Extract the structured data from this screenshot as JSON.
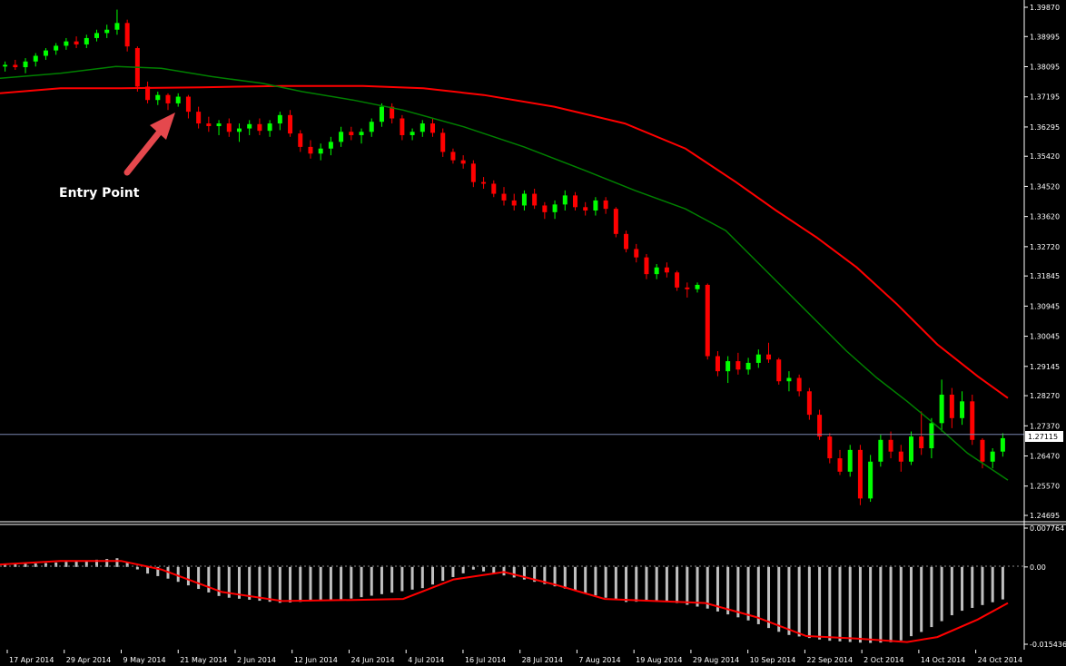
{
  "chart_data": [
    {
      "type": "candlestick",
      "annotation": "Entry Point",
      "y_ticks": [
        "1.39870",
        "1.38995",
        "1.38095",
        "1.37195",
        "1.36295",
        "1.35420",
        "1.34520",
        "1.33620",
        "1.32720",
        "1.31845",
        "1.30945",
        "1.30045",
        "1.29145",
        "1.28270",
        "1.27370",
        "1.26470",
        "1.25570",
        "1.24695"
      ],
      "current_price": "1.27115",
      "ylim": [
        1.24695,
        1.3987
      ],
      "colors": {
        "bull": "#00ff00",
        "bear": "#ff0000",
        "ma_fast": "#008000",
        "ma_slow": "#ff0000",
        "price_line": "#7a86b0"
      },
      "candles": [
        [
          1.381,
          1.3825,
          1.3795,
          1.3815
        ],
        [
          1.3815,
          1.383,
          1.38,
          1.3808
        ],
        [
          1.3808,
          1.3835,
          1.379,
          1.3825
        ],
        [
          1.3825,
          1.385,
          1.381,
          1.3842
        ],
        [
          1.3842,
          1.3865,
          1.383,
          1.3858
        ],
        [
          1.3858,
          1.388,
          1.3845,
          1.3872
        ],
        [
          1.3872,
          1.3895,
          1.386,
          1.3885
        ],
        [
          1.3885,
          1.39,
          1.3865,
          1.3876
        ],
        [
          1.3876,
          1.3905,
          1.3865,
          1.3895
        ],
        [
          1.3895,
          1.392,
          1.3885,
          1.391
        ],
        [
          1.391,
          1.3935,
          1.3895,
          1.392
        ],
        [
          1.392,
          1.398,
          1.3905,
          1.394
        ],
        [
          1.394,
          1.395,
          1.3855,
          1.387
        ],
        [
          1.3865,
          1.387,
          1.3735,
          1.375
        ],
        [
          1.375,
          1.3765,
          1.37,
          1.371
        ],
        [
          1.371,
          1.3735,
          1.3695,
          1.3725
        ],
        [
          1.3725,
          1.373,
          1.368,
          1.37
        ],
        [
          1.37,
          1.373,
          1.369,
          1.372
        ],
        [
          1.372,
          1.3725,
          1.3655,
          1.3675
        ],
        [
          1.3675,
          1.369,
          1.3625,
          1.364
        ],
        [
          1.364,
          1.366,
          1.3615,
          1.3632
        ],
        [
          1.3632,
          1.365,
          1.3605,
          1.364
        ],
        [
          1.364,
          1.3655,
          1.36,
          1.3615
        ],
        [
          1.3615,
          1.364,
          1.3585,
          1.3625
        ],
        [
          1.3625,
          1.365,
          1.3605,
          1.3638
        ],
        [
          1.3638,
          1.3655,
          1.3605,
          1.3618
        ],
        [
          1.3618,
          1.365,
          1.36,
          1.364
        ],
        [
          1.364,
          1.3675,
          1.362,
          1.3665
        ],
        [
          1.3665,
          1.368,
          1.36,
          1.361
        ],
        [
          1.361,
          1.362,
          1.3555,
          1.357
        ],
        [
          1.357,
          1.359,
          1.3535,
          1.355
        ],
        [
          1.355,
          1.358,
          1.353,
          1.3565
        ],
        [
          1.3565,
          1.36,
          1.3545,
          1.3585
        ],
        [
          1.3585,
          1.363,
          1.357,
          1.3615
        ],
        [
          1.3615,
          1.363,
          1.359,
          1.3605
        ],
        [
          1.3605,
          1.3625,
          1.358,
          1.3615
        ],
        [
          1.3615,
          1.3655,
          1.36,
          1.3645
        ],
        [
          1.3645,
          1.37,
          1.363,
          1.369
        ],
        [
          1.369,
          1.37,
          1.364,
          1.3655
        ],
        [
          1.3655,
          1.3665,
          1.359,
          1.3605
        ],
        [
          1.3605,
          1.3625,
          1.359,
          1.3615
        ],
        [
          1.3615,
          1.365,
          1.36,
          1.364
        ],
        [
          1.364,
          1.3655,
          1.36,
          1.3612
        ],
        [
          1.3612,
          1.3625,
          1.354,
          1.3555
        ],
        [
          1.3555,
          1.3565,
          1.352,
          1.353
        ],
        [
          1.353,
          1.3545,
          1.3505,
          1.352
        ],
        [
          1.352,
          1.353,
          1.345,
          1.3465
        ],
        [
          1.3465,
          1.348,
          1.3445,
          1.346
        ],
        [
          1.346,
          1.347,
          1.342,
          1.343
        ],
        [
          1.343,
          1.345,
          1.3395,
          1.341
        ],
        [
          1.341,
          1.343,
          1.338,
          1.3395
        ],
        [
          1.3395,
          1.344,
          1.338,
          1.343
        ],
        [
          1.343,
          1.3445,
          1.3385,
          1.3395
        ],
        [
          1.3395,
          1.3405,
          1.3355,
          1.3375
        ],
        [
          1.3375,
          1.341,
          1.3355,
          1.3398
        ],
        [
          1.3398,
          1.344,
          1.338,
          1.3425
        ],
        [
          1.3425,
          1.3435,
          1.338,
          1.339
        ],
        [
          1.339,
          1.3405,
          1.3365,
          1.338
        ],
        [
          1.338,
          1.342,
          1.3365,
          1.341
        ],
        [
          1.341,
          1.342,
          1.337,
          1.3385
        ],
        [
          1.3385,
          1.339,
          1.33,
          1.331
        ],
        [
          1.331,
          1.332,
          1.3255,
          1.3265
        ],
        [
          1.3265,
          1.328,
          1.3225,
          1.324
        ],
        [
          1.324,
          1.325,
          1.3175,
          1.319
        ],
        [
          1.319,
          1.322,
          1.3175,
          1.321
        ],
        [
          1.321,
          1.3225,
          1.318,
          1.3195
        ],
        [
          1.3195,
          1.32,
          1.314,
          1.315
        ],
        [
          1.315,
          1.3165,
          1.312,
          1.3145
        ],
        [
          1.3145,
          1.3165,
          1.3135,
          1.3158
        ],
        [
          1.3158,
          1.3162,
          1.2935,
          1.2945
        ],
        [
          1.2945,
          1.296,
          1.2885,
          1.29
        ],
        [
          1.29,
          1.2945,
          1.2865,
          1.293
        ],
        [
          1.293,
          1.2955,
          1.289,
          1.2905
        ],
        [
          1.2905,
          1.294,
          1.289,
          1.2925
        ],
        [
          1.2925,
          1.2965,
          1.291,
          1.295
        ],
        [
          1.295,
          1.2985,
          1.2925,
          1.2935
        ],
        [
          1.2935,
          1.294,
          1.286,
          1.287
        ],
        [
          1.287,
          1.29,
          1.284,
          1.288
        ],
        [
          1.288,
          1.289,
          1.2825,
          1.284
        ],
        [
          1.284,
          1.285,
          1.2755,
          1.277
        ],
        [
          1.277,
          1.2785,
          1.2695,
          1.2705
        ],
        [
          1.2705,
          1.2715,
          1.2625,
          1.264
        ],
        [
          1.264,
          1.2665,
          1.259,
          1.26
        ],
        [
          1.26,
          1.268,
          1.2585,
          1.2665
        ],
        [
          1.2665,
          1.268,
          1.25,
          1.252
        ],
        [
          1.252,
          1.265,
          1.251,
          1.263
        ],
        [
          1.263,
          1.271,
          1.2615,
          1.2695
        ],
        [
          1.2695,
          1.272,
          1.264,
          1.266
        ],
        [
          1.266,
          1.268,
          1.26,
          1.263
        ],
        [
          1.263,
          1.272,
          1.262,
          1.2705
        ],
        [
          1.2705,
          1.278,
          1.265,
          1.267
        ],
        [
          1.267,
          1.276,
          1.264,
          1.2745
        ],
        [
          1.2745,
          1.2875,
          1.272,
          1.283
        ],
        [
          1.283,
          1.285,
          1.273,
          1.276
        ],
        [
          1.276,
          1.284,
          1.274,
          1.281
        ],
        [
          1.281,
          1.283,
          1.268,
          1.2695
        ],
        [
          1.2695,
          1.27,
          1.261,
          1.263
        ],
        [
          1.263,
          1.267,
          1.261,
          1.266
        ],
        [
          1.266,
          1.2715,
          1.2645,
          1.27
        ]
      ],
      "ma_fast": [
        [
          0,
          1.3775
        ],
        [
          0.06,
          1.379
        ],
        [
          0.115,
          1.381
        ],
        [
          0.16,
          1.3805
        ],
        [
          0.21,
          1.378
        ],
        [
          0.26,
          1.376
        ],
        [
          0.3,
          1.3735
        ],
        [
          0.35,
          1.371
        ],
        [
          0.4,
          1.368
        ],
        [
          0.46,
          1.363
        ],
        [
          0.52,
          1.357
        ],
        [
          0.58,
          1.35
        ],
        [
          0.63,
          1.344
        ],
        [
          0.68,
          1.3385
        ],
        [
          0.72,
          1.332
        ],
        [
          0.76,
          1.32
        ],
        [
          0.8,
          1.308
        ],
        [
          0.84,
          1.296
        ],
        [
          0.87,
          1.288
        ],
        [
          0.9,
          1.281
        ],
        [
          0.93,
          1.2735
        ],
        [
          0.96,
          1.2655
        ],
        [
          1.0,
          1.2575
        ]
      ],
      "ma_slow": [
        [
          0,
          1.373
        ],
        [
          0.06,
          1.3745
        ],
        [
          0.12,
          1.3745
        ],
        [
          0.2,
          1.3748
        ],
        [
          0.28,
          1.3752
        ],
        [
          0.36,
          1.3752
        ],
        [
          0.42,
          1.3745
        ],
        [
          0.48,
          1.3725
        ],
        [
          0.55,
          1.369
        ],
        [
          0.62,
          1.364
        ],
        [
          0.68,
          1.3565
        ],
        [
          0.73,
          1.3465
        ],
        [
          0.77,
          1.338
        ],
        [
          0.81,
          1.33
        ],
        [
          0.85,
          1.321
        ],
        [
          0.89,
          1.31
        ],
        [
          0.93,
          1.298
        ],
        [
          0.97,
          1.2885
        ],
        [
          1.0,
          1.282
        ]
      ]
    },
    {
      "type": "bar",
      "indicator": "oscillator histogram with signal line",
      "y_ticks": [
        "0.007764",
        "0.00",
        "-0.015436"
      ],
      "ylim": [
        -0.015436,
        0.007764
      ],
      "colors": {
        "bars": "#c0c0c0",
        "signal": "#ff0000"
      },
      "histogram_keypoints": [
        [
          0,
          0.0004
        ],
        [
          0.05,
          0.0008
        ],
        [
          0.1,
          0.0015
        ],
        [
          0.12,
          0.0018
        ],
        [
          0.14,
          -0.001
        ],
        [
          0.17,
          -0.0025
        ],
        [
          0.22,
          -0.006
        ],
        [
          0.28,
          -0.0072
        ],
        [
          0.35,
          -0.0063
        ],
        [
          0.42,
          -0.0042
        ],
        [
          0.47,
          -0.0005
        ],
        [
          0.52,
          -0.0025
        ],
        [
          0.58,
          -0.0052
        ],
        [
          0.62,
          -0.007
        ],
        [
          0.66,
          -0.0068
        ],
        [
          0.7,
          -0.0082
        ],
        [
          0.74,
          -0.0105
        ],
        [
          0.78,
          -0.0135
        ],
        [
          0.82,
          -0.0147
        ],
        [
          0.86,
          -0.0152
        ],
        [
          0.89,
          -0.015
        ],
        [
          0.92,
          -0.0125
        ],
        [
          0.95,
          -0.009
        ],
        [
          1.0,
          -0.0062
        ]
      ],
      "signal_keypoints": [
        [
          0,
          0.0005
        ],
        [
          0.06,
          0.0012
        ],
        [
          0.12,
          0.0012
        ],
        [
          0.16,
          -0.0005
        ],
        [
          0.22,
          -0.005
        ],
        [
          0.28,
          -0.0068
        ],
        [
          0.35,
          -0.0066
        ],
        [
          0.4,
          -0.0064
        ],
        [
          0.45,
          -0.0025
        ],
        [
          0.5,
          -0.001
        ],
        [
          0.55,
          -0.0035
        ],
        [
          0.6,
          -0.0064
        ],
        [
          0.65,
          -0.0068
        ],
        [
          0.7,
          -0.0072
        ],
        [
          0.75,
          -0.01
        ],
        [
          0.8,
          -0.0138
        ],
        [
          0.85,
          -0.0143
        ],
        [
          0.9,
          -0.015
        ],
        [
          0.93,
          -0.014
        ],
        [
          0.97,
          -0.0105
        ],
        [
          1.0,
          -0.0072
        ]
      ]
    }
  ],
  "x_ticks": [
    "17 Apr 2014",
    "29 Apr 2014",
    "9 May 2014",
    "21 May 2014",
    "2 Jun 2014",
    "12 Jun 2014",
    "24 Jun 2014",
    "4 Jul 2014",
    "16 Jul 2014",
    "28 Jul 2014",
    "7 Aug 2014",
    "19 Aug 2014",
    "29 Aug 2014",
    "10 Sep 2014",
    "22 Sep 2014",
    "2 Oct 2014",
    "14 Oct 2014",
    "24 Oct 2014"
  ]
}
